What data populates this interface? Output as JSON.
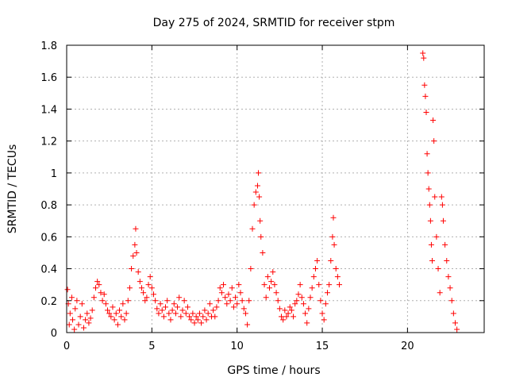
{
  "chart_data": {
    "type": "scatter",
    "title": "Day 275 of 2024, SRMTID for receiver stpm",
    "xlabel": "GPS time / hours",
    "ylabel": "SRMTID / TECUs",
    "xlim": [
      0,
      24.5
    ],
    "ylim": [
      0,
      1.8
    ],
    "xticks": [
      0,
      5,
      10,
      15,
      20
    ],
    "xtick_labels": [
      "0",
      "5",
      "10",
      "15",
      "20"
    ],
    "yticks": [
      0,
      0.2,
      0.4,
      0.6,
      0.8,
      1.0,
      1.2,
      1.4,
      1.6,
      1.8
    ],
    "ytick_labels": [
      "0",
      "0.2",
      "0.4",
      "0.6",
      "0.8",
      "1",
      "1.2",
      "1.4",
      "1.6",
      "1.8"
    ],
    "grid": true,
    "marker": "+",
    "color": "#ff0000",
    "series": [
      {
        "name": "SRMTID",
        "points": [
          [
            0.05,
            0.27
          ],
          [
            0.1,
            0.18
          ],
          [
            0.15,
            0.05
          ],
          [
            0.2,
            0.12
          ],
          [
            0.3,
            0.22
          ],
          [
            0.35,
            0.08
          ],
          [
            0.45,
            0.02
          ],
          [
            0.5,
            0.15
          ],
          [
            0.6,
            0.2
          ],
          [
            0.7,
            0.05
          ],
          [
            0.8,
            0.1
          ],
          [
            0.9,
            0.18
          ],
          [
            1.0,
            0.03
          ],
          [
            1.1,
            0.08
          ],
          [
            1.2,
            0.12
          ],
          [
            1.3,
            0.06
          ],
          [
            1.4,
            0.09
          ],
          [
            1.5,
            0.14
          ],
          [
            1.6,
            0.22
          ],
          [
            1.7,
            0.28
          ],
          [
            1.8,
            0.32
          ],
          [
            1.9,
            0.3
          ],
          [
            2.0,
            0.25
          ],
          [
            2.1,
            0.2
          ],
          [
            2.2,
            0.24
          ],
          [
            2.3,
            0.18
          ],
          [
            2.4,
            0.14
          ],
          [
            2.5,
            0.12
          ],
          [
            2.6,
            0.1
          ],
          [
            2.7,
            0.16
          ],
          [
            2.8,
            0.08
          ],
          [
            2.9,
            0.12
          ],
          [
            3.0,
            0.05
          ],
          [
            3.1,
            0.14
          ],
          [
            3.2,
            0.1
          ],
          [
            3.3,
            0.18
          ],
          [
            3.4,
            0.08
          ],
          [
            3.5,
            0.12
          ],
          [
            3.6,
            0.2
          ],
          [
            3.7,
            0.28
          ],
          [
            3.8,
            0.4
          ],
          [
            3.9,
            0.48
          ],
          [
            4.0,
            0.55
          ],
          [
            4.05,
            0.65
          ],
          [
            4.1,
            0.5
          ],
          [
            4.2,
            0.38
          ],
          [
            4.3,
            0.32
          ],
          [
            4.4,
            0.28
          ],
          [
            4.5,
            0.25
          ],
          [
            4.6,
            0.2
          ],
          [
            4.7,
            0.22
          ],
          [
            4.8,
            0.3
          ],
          [
            4.9,
            0.35
          ],
          [
            5.0,
            0.28
          ],
          [
            5.1,
            0.24
          ],
          [
            5.2,
            0.2
          ],
          [
            5.3,
            0.15
          ],
          [
            5.4,
            0.12
          ],
          [
            5.5,
            0.18
          ],
          [
            5.6,
            0.14
          ],
          [
            5.7,
            0.1
          ],
          [
            5.8,
            0.16
          ],
          [
            5.9,
            0.2
          ],
          [
            6.0,
            0.12
          ],
          [
            6.1,
            0.08
          ],
          [
            6.2,
            0.14
          ],
          [
            6.3,
            0.18
          ],
          [
            6.4,
            0.12
          ],
          [
            6.5,
            0.16
          ],
          [
            6.6,
            0.22
          ],
          [
            6.7,
            0.1
          ],
          [
            6.8,
            0.14
          ],
          [
            6.9,
            0.2
          ],
          [
            7.0,
            0.12
          ],
          [
            7.1,
            0.16
          ],
          [
            7.2,
            0.1
          ],
          [
            7.3,
            0.08
          ],
          [
            7.4,
            0.12
          ],
          [
            7.5,
            0.06
          ],
          [
            7.6,
            0.1
          ],
          [
            7.7,
            0.08
          ],
          [
            7.8,
            0.12
          ],
          [
            7.9,
            0.06
          ],
          [
            8.0,
            0.1
          ],
          [
            8.1,
            0.14
          ],
          [
            8.2,
            0.08
          ],
          [
            8.3,
            0.12
          ],
          [
            8.4,
            0.18
          ],
          [
            8.5,
            0.1
          ],
          [
            8.6,
            0.14
          ],
          [
            8.7,
            0.1
          ],
          [
            8.8,
            0.16
          ],
          [
            8.9,
            0.2
          ],
          [
            9.0,
            0.28
          ],
          [
            9.1,
            0.25
          ],
          [
            9.2,
            0.3
          ],
          [
            9.3,
            0.22
          ],
          [
            9.4,
            0.18
          ],
          [
            9.5,
            0.24
          ],
          [
            9.6,
            0.2
          ],
          [
            9.7,
            0.28
          ],
          [
            9.8,
            0.16
          ],
          [
            9.9,
            0.22
          ],
          [
            10.0,
            0.18
          ],
          [
            10.1,
            0.3
          ],
          [
            10.2,
            0.25
          ],
          [
            10.3,
            0.2
          ],
          [
            10.4,
            0.15
          ],
          [
            10.5,
            0.12
          ],
          [
            10.6,
            0.05
          ],
          [
            10.7,
            0.2
          ],
          [
            10.8,
            0.4
          ],
          [
            10.9,
            0.65
          ],
          [
            11.0,
            0.8
          ],
          [
            11.1,
            0.88
          ],
          [
            11.2,
            0.92
          ],
          [
            11.25,
            1.0
          ],
          [
            11.3,
            0.85
          ],
          [
            11.35,
            0.7
          ],
          [
            11.4,
            0.6
          ],
          [
            11.5,
            0.5
          ],
          [
            11.6,
            0.3
          ],
          [
            11.7,
            0.22
          ],
          [
            11.8,
            0.35
          ],
          [
            11.9,
            0.28
          ],
          [
            12.0,
            0.32
          ],
          [
            12.1,
            0.38
          ],
          [
            12.2,
            0.3
          ],
          [
            12.3,
            0.25
          ],
          [
            12.4,
            0.2
          ],
          [
            12.5,
            0.15
          ],
          [
            12.6,
            0.1
          ],
          [
            12.7,
            0.08
          ],
          [
            12.8,
            0.14
          ],
          [
            12.9,
            0.1
          ],
          [
            13.0,
            0.12
          ],
          [
            13.1,
            0.16
          ],
          [
            13.2,
            0.14
          ],
          [
            13.3,
            0.1
          ],
          [
            13.4,
            0.18
          ],
          [
            13.5,
            0.2
          ],
          [
            13.6,
            0.24
          ],
          [
            13.7,
            0.3
          ],
          [
            13.8,
            0.22
          ],
          [
            13.9,
            0.18
          ],
          [
            14.0,
            0.12
          ],
          [
            14.1,
            0.06
          ],
          [
            14.2,
            0.15
          ],
          [
            14.3,
            0.22
          ],
          [
            14.4,
            0.28
          ],
          [
            14.5,
            0.35
          ],
          [
            14.6,
            0.4
          ],
          [
            14.7,
            0.45
          ],
          [
            14.8,
            0.3
          ],
          [
            14.9,
            0.2
          ],
          [
            15.0,
            0.12
          ],
          [
            15.1,
            0.08
          ],
          [
            15.2,
            0.18
          ],
          [
            15.3,
            0.25
          ],
          [
            15.4,
            0.3
          ],
          [
            15.5,
            0.45
          ],
          [
            15.6,
            0.6
          ],
          [
            15.65,
            0.72
          ],
          [
            15.7,
            0.55
          ],
          [
            15.8,
            0.4
          ],
          [
            15.9,
            0.35
          ],
          [
            16.0,
            0.3
          ],
          [
            20.9,
            1.75
          ],
          [
            20.95,
            1.72
          ],
          [
            21.0,
            1.55
          ],
          [
            21.05,
            1.48
          ],
          [
            21.1,
            1.38
          ],
          [
            21.15,
            1.12
          ],
          [
            21.2,
            1.0
          ],
          [
            21.25,
            0.9
          ],
          [
            21.3,
            0.8
          ],
          [
            21.35,
            0.7
          ],
          [
            21.4,
            0.55
          ],
          [
            21.45,
            0.45
          ],
          [
            21.5,
            1.33
          ],
          [
            21.55,
            1.2
          ],
          [
            21.6,
            0.85
          ],
          [
            21.7,
            0.6
          ],
          [
            21.8,
            0.4
          ],
          [
            21.9,
            0.25
          ],
          [
            22.0,
            0.85
          ],
          [
            22.05,
            0.8
          ],
          [
            22.1,
            0.7
          ],
          [
            22.2,
            0.55
          ],
          [
            22.3,
            0.45
          ],
          [
            22.4,
            0.35
          ],
          [
            22.5,
            0.28
          ],
          [
            22.6,
            0.2
          ],
          [
            22.7,
            0.12
          ],
          [
            22.8,
            0.06
          ],
          [
            22.9,
            0.02
          ]
        ]
      }
    ]
  }
}
